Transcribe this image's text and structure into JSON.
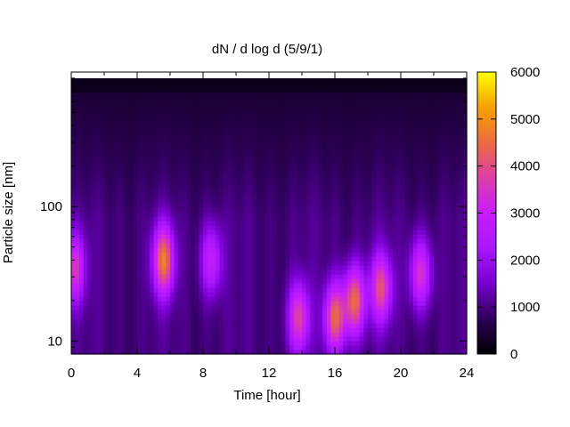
{
  "chart_data": {
    "type": "heatmap",
    "title": "dN / d log d (5/9/1)",
    "xlabel": "Time [hour]",
    "ylabel": "Particle size [nm]",
    "x_ticks": [
      "0",
      "4",
      "8",
      "12",
      "16",
      "20",
      "24"
    ],
    "y_ticks": [
      "10",
      "100"
    ],
    "y_scale": "log",
    "xlim": [
      0,
      24
    ],
    "ylim": [
      8,
      1000
    ],
    "colorbar": {
      "min": 0,
      "max": 6000,
      "ticks": [
        "0",
        "1000",
        "2000",
        "3000",
        "4000",
        "5000",
        "6000"
      ],
      "colormap": "gnuplot",
      "colors": [
        "#000000",
        "#2d0059",
        "#7800d0",
        "#aa16ff",
        "#c81cff",
        "#dd3fa8",
        "#ec6b40",
        "#f7a100",
        "#ffff00"
      ]
    },
    "background_level": 1000,
    "upper_level": 400,
    "features": [
      {
        "x": 0.2,
        "size_nm": 35,
        "value": 3500
      },
      {
        "x": 5.6,
        "size_nm": 40,
        "value": 4700
      },
      {
        "x": 8.5,
        "size_nm": 40,
        "value": 3000
      },
      {
        "x": 13.8,
        "size_nm": 15,
        "value": 3800
      },
      {
        "x": 16.0,
        "size_nm": 15,
        "value": 4400
      },
      {
        "x": 17.2,
        "size_nm": 20,
        "value": 4500
      },
      {
        "x": 18.8,
        "size_nm": 25,
        "value": 4000
      },
      {
        "x": 21.2,
        "size_nm": 32,
        "value": 3500
      }
    ]
  }
}
